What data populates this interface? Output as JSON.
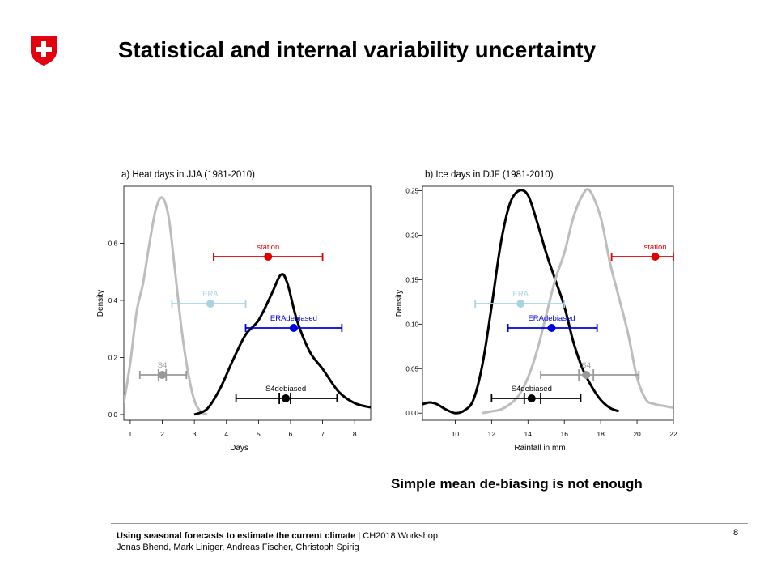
{
  "slide": {
    "title": "Statistical and internal variability uncertainty",
    "caption": "Simple mean de-biasing is not enough",
    "footer_bold": "Using seasonal forecasts to estimate the current climate",
    "footer_sep": "| CH2018 Workshop",
    "footer_authors": "Jonas Bhend, Mark Liniger, Andreas Fischer, Christoph Spirig",
    "page_number": "8",
    "logo_icon": "swiss-cross-icon",
    "colors": {
      "logo_red": "#e3000f"
    }
  },
  "chart_data": [
    {
      "type": "line",
      "title": "a) Heat days in JJA (1981-2010)",
      "xlabel": "Days",
      "ylabel": "Density",
      "xlim": [
        0.8,
        8.5
      ],
      "ylim": [
        -0.02,
        0.8
      ],
      "x_ticks": [
        "1",
        "2",
        "3",
        "4",
        "5",
        "6",
        "7",
        "8"
      ],
      "y_ticks": [
        "0.0",
        "0.2",
        "0.4",
        "0.6"
      ],
      "series": [
        {
          "name": "S4",
          "color": "#bdbdbd",
          "x": [
            0.8,
            1.0,
            1.2,
            1.4,
            1.6,
            1.8,
            2.0,
            2.2,
            2.4,
            2.6,
            2.8,
            3.0,
            3.2,
            3.4
          ],
          "y": [
            0.04,
            0.18,
            0.36,
            0.46,
            0.6,
            0.72,
            0.76,
            0.69,
            0.5,
            0.3,
            0.15,
            0.05,
            0.01,
            0.0
          ]
        },
        {
          "name": "S4debiased",
          "color": "#000000",
          "x": [
            3.0,
            3.4,
            3.8,
            4.2,
            4.6,
            5.0,
            5.4,
            5.7,
            5.9,
            6.2,
            6.6,
            7.0,
            7.5,
            8.0,
            8.5
          ],
          "y": [
            0.0,
            0.02,
            0.09,
            0.19,
            0.28,
            0.33,
            0.42,
            0.49,
            0.46,
            0.33,
            0.22,
            0.16,
            0.08,
            0.04,
            0.025
          ]
        }
      ],
      "markers": [
        {
          "label": "station",
          "color": "#e00000",
          "center": 5.3,
          "low": 3.6,
          "high": 7.0
        },
        {
          "label": "ERA",
          "color": "#a8d4e2",
          "center": 3.5,
          "low": 2.3,
          "high": 4.6
        },
        {
          "label": "ERAdebiased",
          "color": "#0000e0",
          "center": 6.1,
          "low": 4.6,
          "high": 7.6
        },
        {
          "label": "S4",
          "color": "#999999",
          "center": 2.0,
          "low": 1.3,
          "high": 2.75,
          "inner_low": 1.88,
          "inner_high": 2.12
        },
        {
          "label": "S4debiased",
          "color": "#000000",
          "center": 5.85,
          "low": 4.3,
          "high": 7.45,
          "inner_low": 5.65,
          "inner_high": 6.0
        }
      ]
    },
    {
      "type": "line",
      "title": "b) Ice days in DJF (1981-2010)",
      "xlabel": "Rainfall in mm",
      "ylabel": "Density",
      "xlim": [
        8.2,
        22
      ],
      "ylim": [
        -0.008,
        0.255
      ],
      "x_ticks": [
        "10",
        "12",
        "14",
        "16",
        "18",
        "20",
        "22"
      ],
      "y_ticks": [
        "0.00",
        "0.05",
        "0.10",
        "0.15",
        "0.20",
        "0.25"
      ],
      "series": [
        {
          "name": "S4debiased",
          "color": "#000000",
          "x": [
            8.2,
            8.6,
            9.0,
            9.5,
            10.0,
            10.5,
            11.0,
            11.5,
            12.0,
            12.5,
            13.0,
            13.5,
            14.0,
            14.5,
            15.0,
            15.5,
            16.0,
            16.5,
            17.0,
            17.5,
            18.0,
            18.5,
            19.0
          ],
          "y": [
            0.01,
            0.012,
            0.01,
            0.004,
            0.0,
            0.003,
            0.015,
            0.055,
            0.12,
            0.19,
            0.235,
            0.25,
            0.245,
            0.215,
            0.18,
            0.15,
            0.12,
            0.08,
            0.05,
            0.03,
            0.015,
            0.006,
            0.002
          ]
        },
        {
          "name": "S4",
          "color": "#bdbdbd",
          "x": [
            11.5,
            12.0,
            12.5,
            13.0,
            13.5,
            14.0,
            14.5,
            15.0,
            15.5,
            16.0,
            16.5,
            17.0,
            17.4,
            18.0,
            18.5,
            19.0,
            19.5,
            20.0,
            20.5,
            21.0,
            21.5,
            22.0
          ],
          "y": [
            0.0,
            0.002,
            0.004,
            0.01,
            0.02,
            0.04,
            0.07,
            0.11,
            0.15,
            0.18,
            0.22,
            0.245,
            0.25,
            0.22,
            0.17,
            0.13,
            0.09,
            0.04,
            0.015,
            0.01,
            0.008,
            0.006
          ]
        }
      ],
      "markers": [
        {
          "label": "station",
          "color": "#e00000",
          "center": 21.0,
          "low": 18.6,
          "high": 22.0
        },
        {
          "label": "ERA",
          "color": "#a8d4e2",
          "center": 13.6,
          "low": 11.1,
          "high": 16.0
        },
        {
          "label": "ERAdebiased",
          "color": "#0000e0",
          "center": 15.3,
          "low": 12.9,
          "high": 17.8
        },
        {
          "label": "S4",
          "color": "#999999",
          "center": 17.2,
          "low": 14.7,
          "high": 20.1,
          "inner_low": 16.8,
          "inner_high": 17.6
        },
        {
          "label": "S4debiased",
          "color": "#000000",
          "center": 14.2,
          "low": 12.0,
          "high": 16.9,
          "inner_low": 13.8,
          "inner_high": 14.7
        }
      ]
    }
  ]
}
